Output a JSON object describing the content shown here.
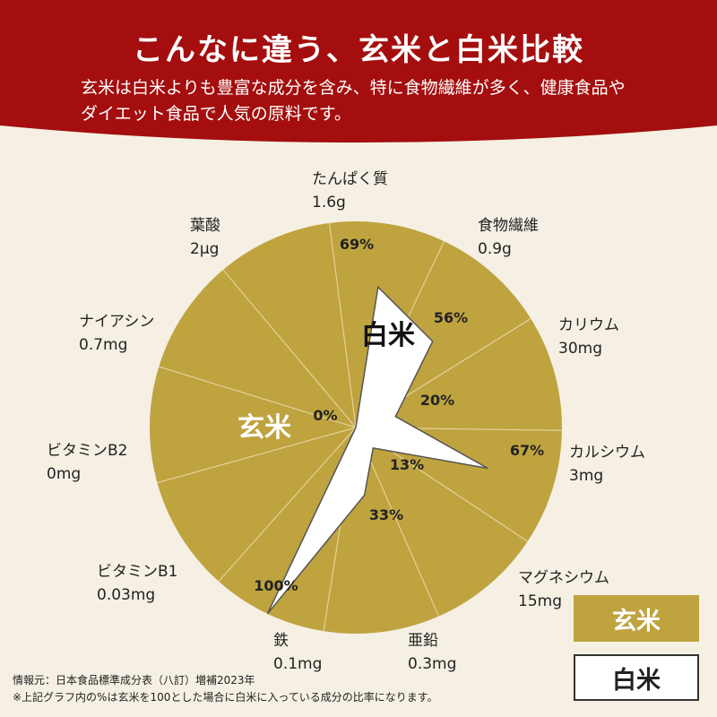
{
  "header": {
    "title": "こんなに違う、玄米と白米比較",
    "subtitle_line1": "玄米は白米よりも豊富な成分を含み、特に食物繊維が多く、健康食品や",
    "subtitle_line2": "ダイエット食品で人気の原料です。"
  },
  "colors": {
    "header_red": "#a40e0e",
    "brown_rice": "#bfa33f",
    "white_rice": "#ffffff",
    "background": "#f5f0e3"
  },
  "legend": {
    "brown_label": "玄米",
    "white_label": "白米"
  },
  "footnotes": {
    "source": "情報元：日本食品標準成分表（八訂）増補2023年",
    "note": "※上記グラフ内の%は玄米を100とした場合に白米に入っている成分の比率になります。"
  },
  "chart_data": {
    "type": "radar",
    "max": 100,
    "series": [
      {
        "name": "玄米",
        "values": [
          100,
          100,
          100,
          100,
          100,
          100,
          100,
          100,
          100,
          100,
          100
        ]
      },
      {
        "name": "白米",
        "values": [
          69,
          56,
          20,
          67,
          13,
          33,
          100,
          0,
          0,
          0,
          0
        ]
      }
    ],
    "in_chart_labels": {
      "brown": "玄米",
      "white": "白米"
    },
    "categories": [
      {
        "name": "たんぱく質",
        "amount": "1.6g",
        "percent_label": "69%"
      },
      {
        "name": "食物繊維",
        "amount": "0.9g",
        "percent_label": "56%"
      },
      {
        "name": "カリウム",
        "amount": "30mg",
        "percent_label": "20%"
      },
      {
        "name": "カルシウム",
        "amount": "3mg",
        "percent_label": "67%"
      },
      {
        "name": "マグネシウム",
        "amount": "15mg",
        "percent_label": "13%"
      },
      {
        "name": "亜鉛",
        "amount": "0.3mg",
        "percent_label": "33%"
      },
      {
        "name": "鉄",
        "amount": "0.1mg",
        "percent_label": "100%"
      },
      {
        "name": "ビタミンB1",
        "amount": "0.03mg",
        "percent_label": ""
      },
      {
        "name": "ビタミンB2",
        "amount": "0mg",
        "percent_label": "0%"
      },
      {
        "name": "ナイアシン",
        "amount": "0.7mg",
        "percent_label": ""
      },
      {
        "name": "葉酸",
        "amount": "2μg",
        "percent_label": ""
      }
    ]
  }
}
